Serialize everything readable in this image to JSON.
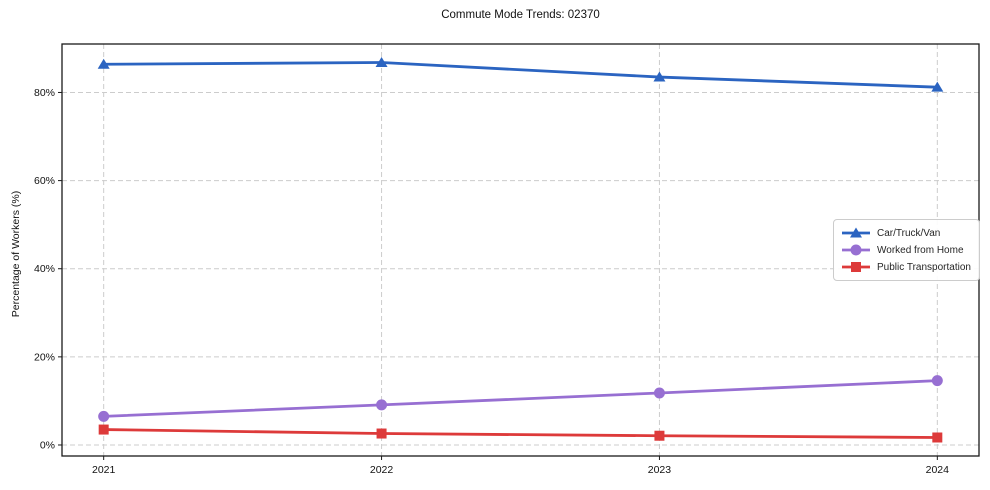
{
  "title": "Commute Mode Trends: 02370",
  "chart_data": {
    "type": "line",
    "title": "Commute Mode Trends: 02370",
    "x": [
      2021,
      2022,
      2023,
      2024
    ],
    "x_tick_labels": [
      "2021",
      "2022",
      "2023",
      "2024"
    ],
    "series": [
      {
        "name": "Car/Truck/Van",
        "marker": "triangle",
        "color": "#2b64c1",
        "values": [
          86.4,
          86.8,
          83.5,
          81.2
        ]
      },
      {
        "name": "Worked from Home",
        "marker": "circle",
        "color": "#976fd2",
        "values": [
          6.5,
          9.1,
          11.8,
          14.6
        ]
      },
      {
        "name": "Public Transportation",
        "marker": "square",
        "color": "#dd3a3a",
        "values": [
          3.5,
          2.6,
          2.1,
          1.7
        ]
      }
    ],
    "xlabel": "",
    "ylabel": "Percentage of Workers (%)",
    "yticks": {
      "values": [
        0,
        20,
        40,
        60,
        80
      ],
      "labels": [
        "0%",
        "20%",
        "40%",
        "60%",
        "80%"
      ]
    },
    "ylim": [
      -2.5,
      91.0
    ],
    "xlim": [
      2020.85,
      2024.15
    ],
    "grid": "dashed",
    "grid_color": "#cccccc",
    "spine_color": "#1a1a1a",
    "legend_position": "middle-right"
  }
}
